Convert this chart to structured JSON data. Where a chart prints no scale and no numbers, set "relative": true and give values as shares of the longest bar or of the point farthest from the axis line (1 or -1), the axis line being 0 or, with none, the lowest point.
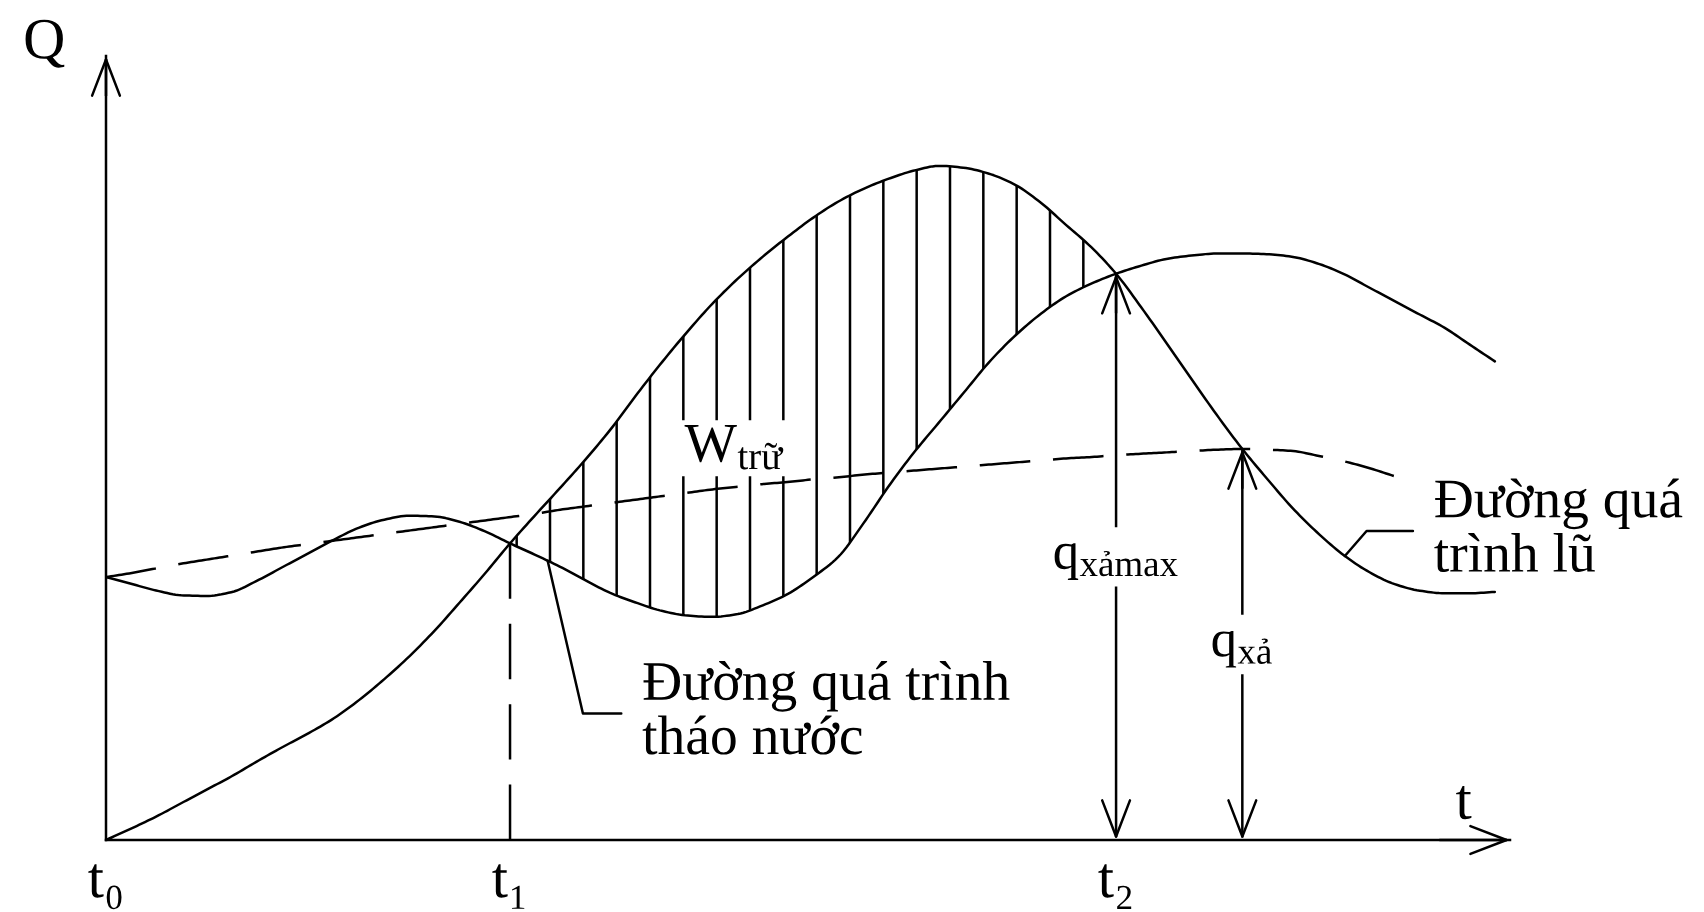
{
  "chart_data": {
    "type": "line",
    "relative": true,
    "xlabel": "t",
    "ylabel": "Q",
    "tick_labels": "x",
    "categories": [
      "t₀",
      null,
      null,
      null,
      null,
      null,
      null,
      null,
      null,
      null,
      null,
      null,
      null,
      null,
      null,
      null,
      "t₁",
      null,
      null,
      null,
      null,
      null,
      null,
      null,
      null,
      null,
      null,
      null,
      null,
      null,
      null,
      null,
      null,
      null,
      null,
      null,
      null,
      null,
      null,
      null,
      "t₂",
      null,
      null,
      null,
      null,
      null,
      null,
      null,
      null,
      null,
      null,
      null,
      null,
      null,
      null,
      null
    ],
    "series": [
      {
        "name": "Đường quá trình\ntháo nước",
        "color": "#000000",
        "line_style": "solid",
        "values": [
          0.39,
          0.38,
          0.37,
          0.363,
          0.362,
          0.368,
          0.385,
          0.405,
          0.425,
          0.445,
          0.463,
          0.475,
          0.481,
          0.48,
          0.472,
          0.458,
          0.44,
          0.423,
          0.405,
          0.385,
          0.366,
          0.352,
          0.34,
          0.333,
          0.331,
          0.335,
          0.348,
          0.365,
          0.39,
          0.42,
          0.47,
          0.525,
          0.575,
          0.62,
          0.665,
          0.71,
          0.748,
          0.78,
          0.806,
          0.825,
          0.84,
          0.852,
          0.862,
          0.867,
          0.87,
          0.87,
          0.869,
          0.865,
          0.855,
          0.84,
          0.82,
          0.8,
          0.78,
          0.76,
          0.735,
          0.71
        ]
      },
      {
        "name": "Đường quá\ntrình lũ",
        "color": "#000000",
        "line_style": "solid",
        "values": [
          0,
          0.017,
          0.035,
          0.055,
          0.075,
          0.095,
          0.117,
          0.138,
          0.158,
          0.18,
          0.207,
          0.238,
          0.272,
          0.31,
          0.352,
          0.395,
          0.44,
          0.482,
          0.523,
          0.565,
          0.61,
          0.66,
          0.708,
          0.753,
          0.795,
          0.832,
          0.865,
          0.895,
          0.923,
          0.947,
          0.966,
          0.981,
          0.993,
          1,
          0.997,
          0.988,
          0.972,
          0.946,
          0.913,
          0.88,
          0.84,
          0.79,
          0.737,
          0.683,
          0.63,
          0.58,
          0.535,
          0.492,
          0.455,
          0.423,
          0.398,
          0.38,
          0.37,
          0.366,
          0.366,
          0.368
        ],
        "lower": [
          null,
          null,
          null,
          null,
          null,
          null,
          null,
          null,
          null,
          null,
          null,
          null,
          null,
          null,
          null,
          null,
          0.44,
          0.423,
          0.405,
          0.385,
          0.366,
          0.352,
          0.34,
          0.333,
          0.331,
          0.335,
          0.348,
          0.365,
          0.39,
          0.42,
          0.47,
          0.525,
          0.575,
          0.62,
          0.665,
          0.71,
          0.748,
          0.78,
          0.806,
          0.825,
          0.84,
          null,
          null,
          null,
          null,
          null,
          null,
          null,
          null,
          null,
          null,
          null,
          null,
          null,
          null,
          null
        ],
        "upper": [
          null,
          null,
          null,
          null,
          null,
          null,
          null,
          null,
          null,
          null,
          null,
          null,
          null,
          null,
          null,
          null,
          0.44,
          0.482,
          0.523,
          0.565,
          0.61,
          0.66,
          0.708,
          0.753,
          0.795,
          0.832,
          0.865,
          0.895,
          0.923,
          0.947,
          0.966,
          0.981,
          0.993,
          1,
          0.997,
          0.988,
          0.972,
          0.946,
          0.913,
          0.88,
          0.84,
          null,
          null,
          null,
          null,
          null,
          null,
          null,
          null,
          null,
          null,
          null,
          null,
          null,
          null,
          null
        ]
      },
      {
        "color": "#000000",
        "line_style": "dashed",
        "values": [
          0.39,
          0.396,
          0.403,
          0.41,
          0.416,
          0.422,
          0.428,
          0.434,
          0.439,
          0.444,
          0.449,
          0.454,
          0.459,
          0.464,
          0.469,
          0.474,
          0.479,
          0.484,
          0.49,
          0.495,
          0.5,
          0.505,
          0.51,
          0.515,
          0.52,
          0.524,
          0.528,
          0.531,
          0.535,
          0.538,
          0.542,
          0.545,
          0.548,
          0.551,
          0.554,
          0.557,
          0.56,
          0.563,
          0.566,
          0.568,
          0.571,
          0.573,
          0.575,
          0.577,
          0.579,
          0.58,
          0.579,
          0.577,
          0.57,
          0.562,
          0.552,
          0.54,
          null,
          null,
          null,
          null
        ]
      }
    ],
    "ref_lines": [
      {
        "axis": "x",
        "value": "t₁",
        "line_style": "dashed"
      }
    ],
    "annotations": [
      "W$_{trữ}$",
      {
        "text": "q$_{xảmax}$",
        "x": "t₂",
        "y": 0.84
      },
      {
        "text": "q$_{xả}$",
        "y": 0.58
      }
    ]
  }
}
